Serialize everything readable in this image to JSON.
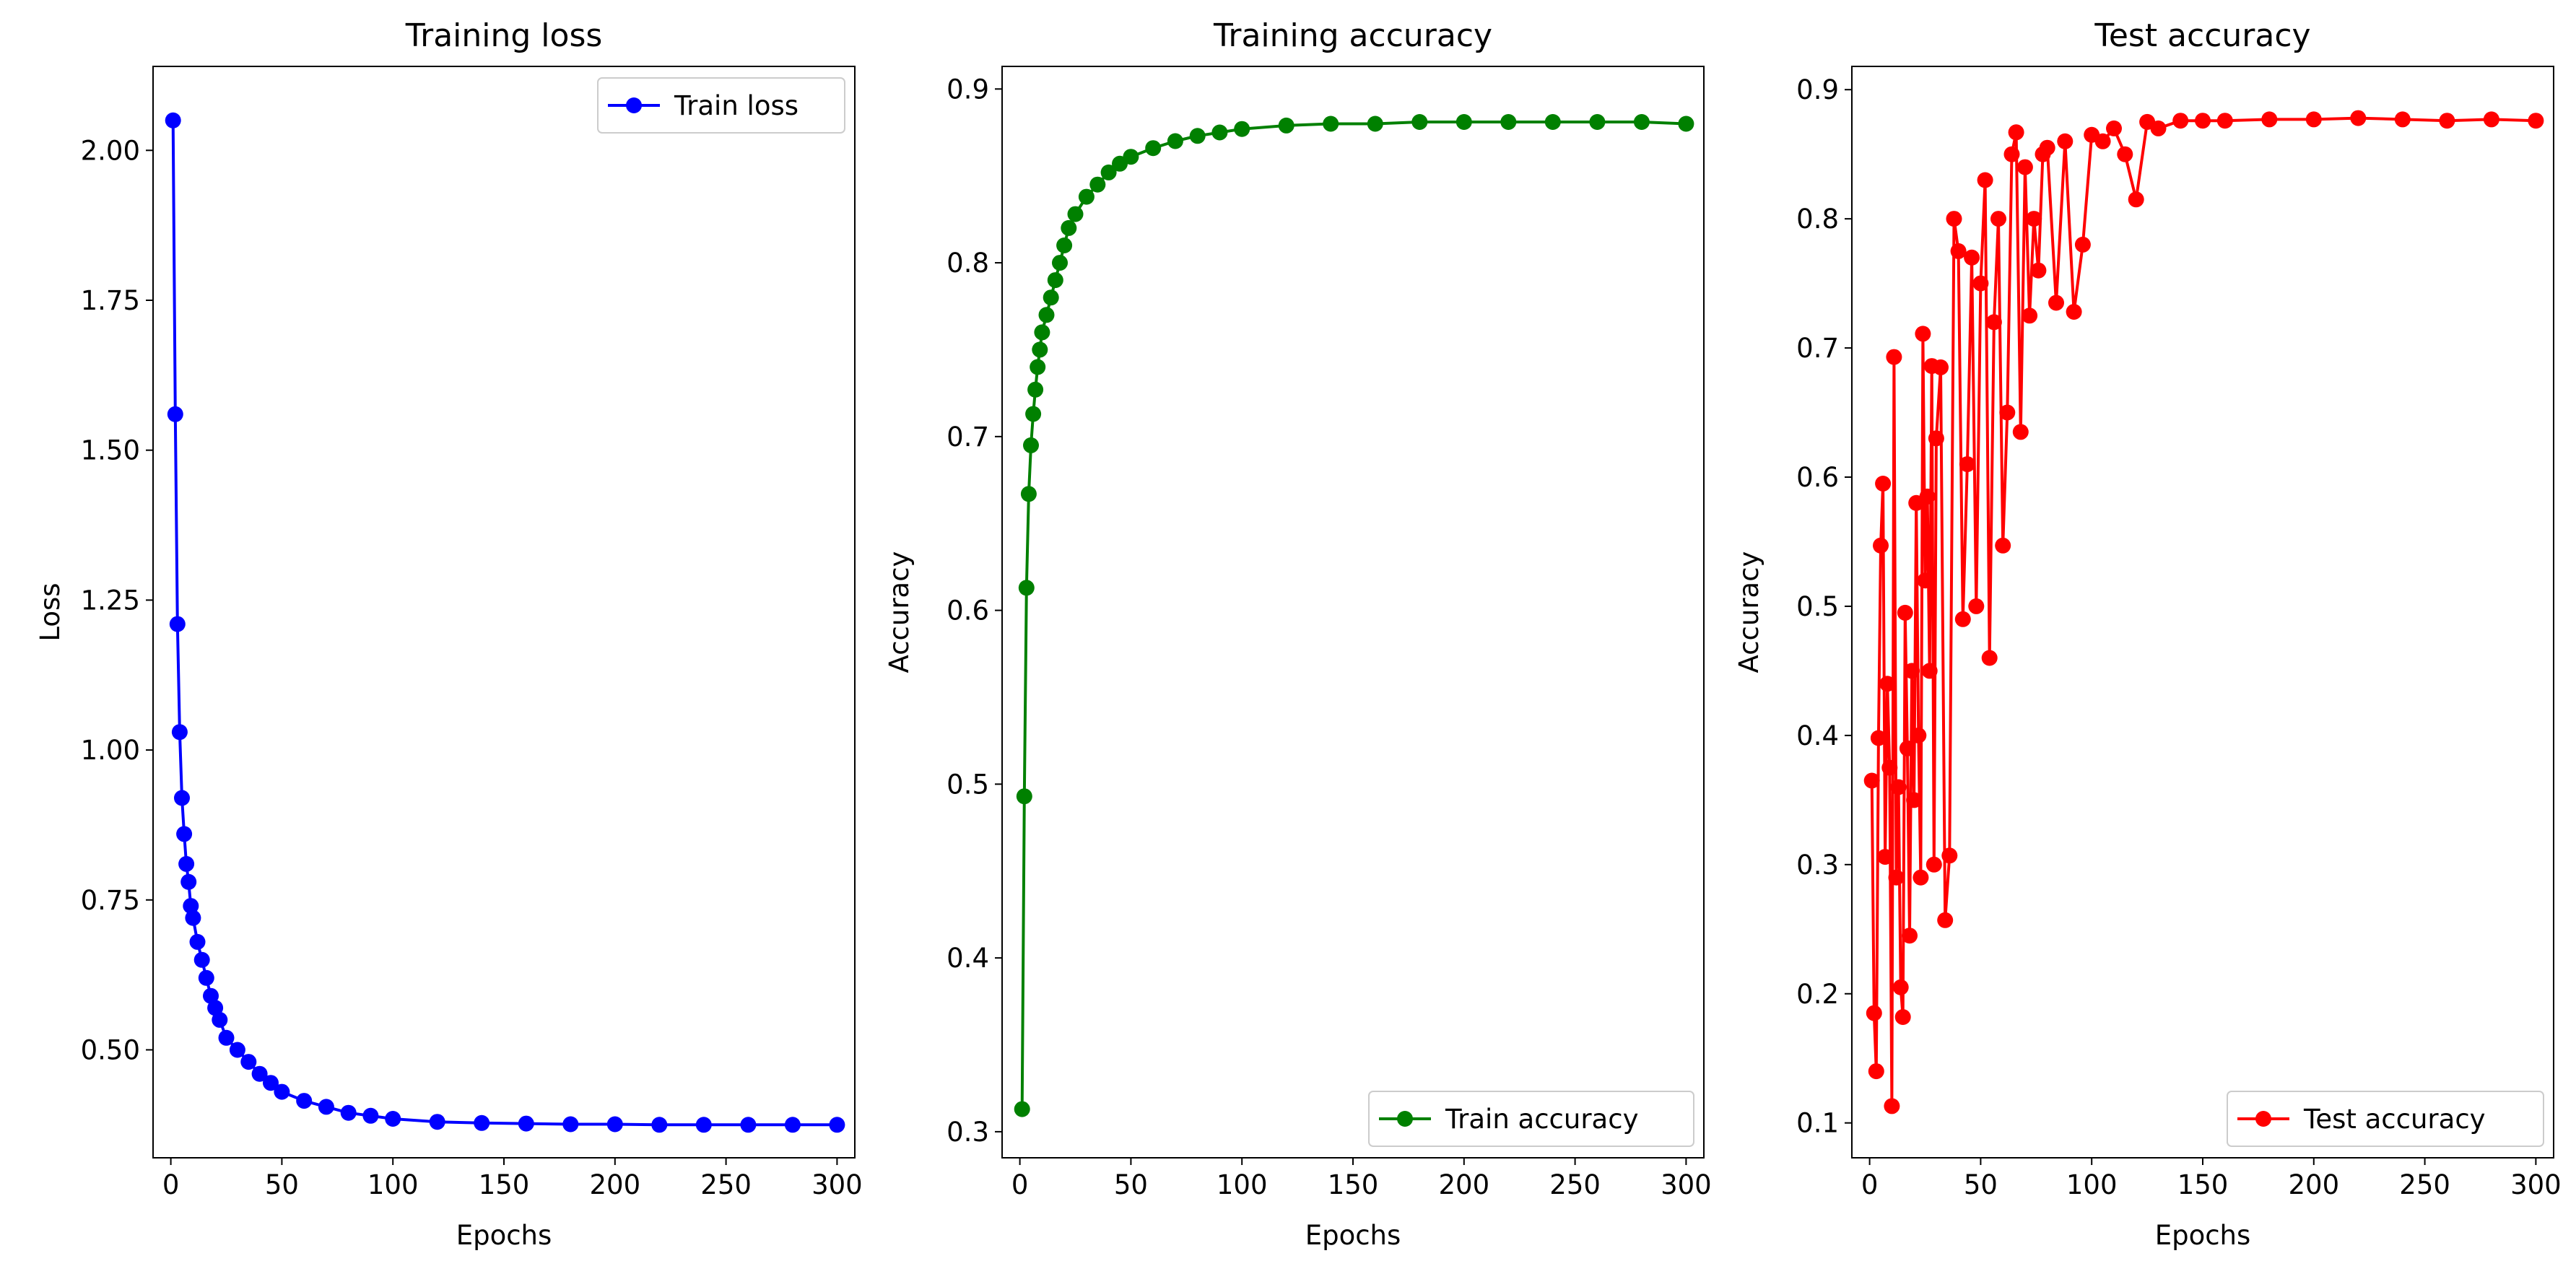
{
  "chart_data": [
    {
      "type": "line",
      "title": "Training loss",
      "xlabel": "Epochs",
      "ylabel": "Loss",
      "xlim": [
        -8,
        308
      ],
      "ylim": [
        0.32,
        2.14
      ],
      "xticks": [
        0,
        50,
        100,
        150,
        200,
        250,
        300
      ],
      "yticks": [
        0.5,
        0.75,
        1.0,
        1.25,
        1.5,
        1.75,
        2.0
      ],
      "ytick_labels": [
        "0.50",
        "0.75",
        "1.00",
        "1.25",
        "1.50",
        "1.75",
        "2.00"
      ],
      "legend_position": "top-right",
      "series": [
        {
          "name": "Train loss",
          "color": "#0000ff",
          "marker": "circle",
          "x": [
            1,
            2,
            3,
            4,
            5,
            6,
            7,
            8,
            9,
            10,
            12,
            14,
            16,
            18,
            20,
            22,
            25,
            30,
            35,
            40,
            45,
            50,
            60,
            70,
            80,
            90,
            100,
            120,
            140,
            160,
            180,
            200,
            220,
            240,
            260,
            280,
            300
          ],
          "y": [
            2.05,
            1.56,
            1.21,
            1.03,
            0.92,
            0.86,
            0.81,
            0.78,
            0.74,
            0.72,
            0.68,
            0.65,
            0.62,
            0.59,
            0.57,
            0.55,
            0.52,
            0.5,
            0.48,
            0.46,
            0.445,
            0.43,
            0.415,
            0.405,
            0.395,
            0.39,
            0.385,
            0.38,
            0.378,
            0.377,
            0.376,
            0.376,
            0.375,
            0.375,
            0.375,
            0.375,
            0.375
          ]
        }
      ]
    },
    {
      "type": "line",
      "title": "Training accuracy",
      "xlabel": "Epochs",
      "ylabel": "Accuracy",
      "xlim": [
        -8,
        308
      ],
      "ylim": [
        0.285,
        0.913
      ],
      "xticks": [
        0,
        50,
        100,
        150,
        200,
        250,
        300
      ],
      "yticks": [
        0.3,
        0.4,
        0.5,
        0.6,
        0.7,
        0.8,
        0.9
      ],
      "ytick_labels": [
        "0.3",
        "0.4",
        "0.5",
        "0.6",
        "0.7",
        "0.8",
        "0.9"
      ],
      "legend_position": "bottom-right",
      "series": [
        {
          "name": "Train accuracy",
          "color": "#008000",
          "marker": "circle",
          "x": [
            1,
            2,
            3,
            4,
            5,
            6,
            7,
            8,
            9,
            10,
            12,
            14,
            16,
            18,
            20,
            22,
            25,
            30,
            35,
            40,
            45,
            50,
            60,
            70,
            80,
            90,
            100,
            120,
            140,
            160,
            180,
            200,
            220,
            240,
            260,
            280,
            300
          ],
          "y": [
            0.313,
            0.493,
            0.613,
            0.667,
            0.695,
            0.713,
            0.727,
            0.74,
            0.75,
            0.76,
            0.77,
            0.78,
            0.79,
            0.8,
            0.81,
            0.82,
            0.828,
            0.838,
            0.845,
            0.852,
            0.857,
            0.861,
            0.866,
            0.87,
            0.873,
            0.875,
            0.877,
            0.879,
            0.88,
            0.88,
            0.881,
            0.881,
            0.881,
            0.881,
            0.881,
            0.881,
            0.88
          ]
        }
      ]
    },
    {
      "type": "line",
      "title": "Test accuracy",
      "xlabel": "Epochs",
      "ylabel": "Accuracy",
      "xlim": [
        -8,
        308
      ],
      "ylim": [
        0.073,
        0.918
      ],
      "xticks": [
        0,
        50,
        100,
        150,
        200,
        250,
        300
      ],
      "yticks": [
        0.1,
        0.2,
        0.3,
        0.4,
        0.5,
        0.6,
        0.7,
        0.8,
        0.9
      ],
      "ytick_labels": [
        "0.1",
        "0.2",
        "0.3",
        "0.4",
        "0.5",
        "0.6",
        "0.7",
        "0.8",
        "0.9"
      ],
      "legend_position": "bottom-right",
      "series": [
        {
          "name": "Test accuracy",
          "color": "#ff0000",
          "marker": "circle",
          "x": [
            1,
            2,
            3,
            4,
            5,
            6,
            7,
            8,
            9,
            10,
            11,
            12,
            13,
            14,
            15,
            16,
            17,
            18,
            19,
            20,
            21,
            22,
            23,
            24,
            25,
            26,
            27,
            28,
            29,
            30,
            32,
            34,
            36,
            38,
            40,
            42,
            44,
            46,
            48,
            50,
            52,
            54,
            56,
            58,
            60,
            62,
            64,
            66,
            68,
            70,
            72,
            74,
            76,
            78,
            80,
            84,
            88,
            92,
            96,
            100,
            105,
            110,
            115,
            120,
            125,
            130,
            140,
            150,
            160,
            180,
            200,
            220,
            240,
            260,
            280,
            300
          ],
          "y": [
            0.365,
            0.185,
            0.14,
            0.398,
            0.547,
            0.595,
            0.306,
            0.44,
            0.375,
            0.113,
            0.693,
            0.29,
            0.36,
            0.205,
            0.182,
            0.495,
            0.39,
            0.245,
            0.45,
            0.35,
            0.58,
            0.4,
            0.29,
            0.711,
            0.52,
            0.585,
            0.45,
            0.686,
            0.3,
            0.63,
            0.685,
            0.257,
            0.307,
            0.8,
            0.775,
            0.49,
            0.61,
            0.77,
            0.5,
            0.75,
            0.83,
            0.46,
            0.72,
            0.8,
            0.547,
            0.65,
            0.85,
            0.867,
            0.635,
            0.84,
            0.725,
            0.8,
            0.76,
            0.85,
            0.855,
            0.735,
            0.86,
            0.728,
            0.78,
            0.865,
            0.86,
            0.87,
            0.85,
            0.815,
            0.875,
            0.87,
            0.876,
            0.876,
            0.876,
            0.877,
            0.877,
            0.878,
            0.877,
            0.876,
            0.877,
            0.876
          ]
        }
      ]
    }
  ]
}
